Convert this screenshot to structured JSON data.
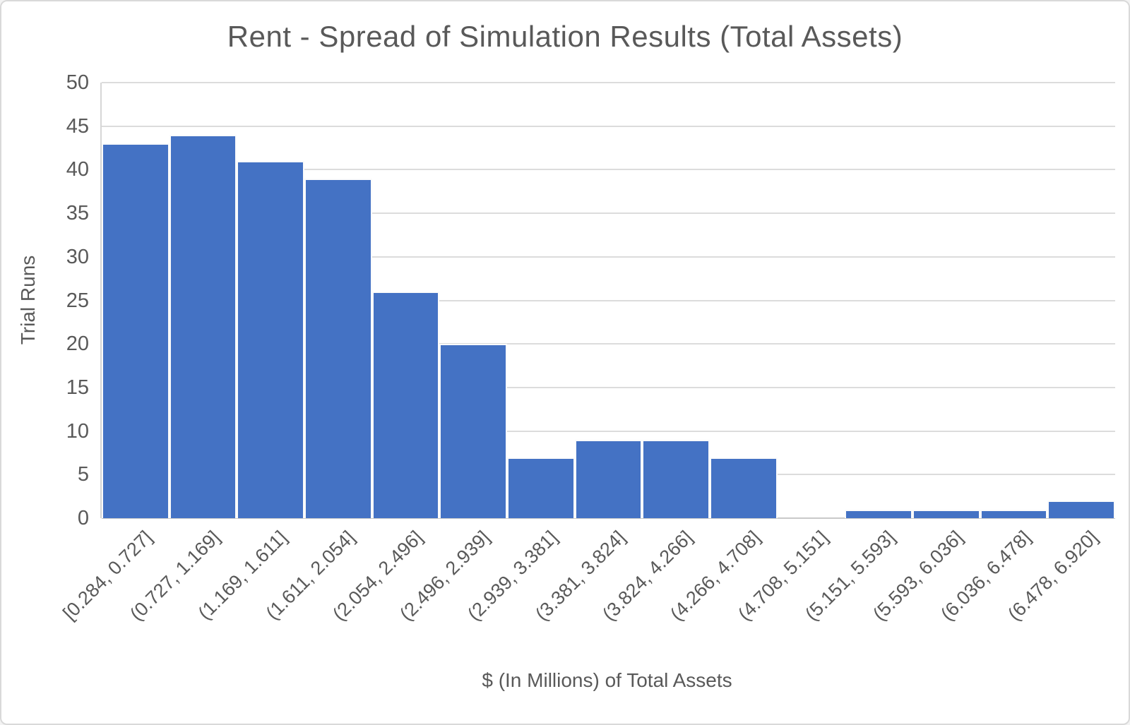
{
  "chart": {
    "title": "Rent - Spread of Simulation Results (Total Assets)",
    "y_axis_title": "Trial Runs",
    "x_axis_title": "$ (In Millions) of Total Assets",
    "colors": {
      "bar_fill": "#4472C4",
      "bar_border": "#FBFBFB",
      "text": "#595959",
      "gridline": "#DCDCDC",
      "axis_line": "#C9C9C9",
      "background": "#FFFFFF",
      "frame_border": "#D9D9D9"
    }
  },
  "chart_data": {
    "type": "bar",
    "subtype": "histogram",
    "title": "Rent - Spread of Simulation Results (Total Assets)",
    "categories": [
      "[0.284, 0.727]",
      "(0.727, 1.169]",
      "(1.169, 1.611]",
      "(1.611, 2.054]",
      "(2.054, 2.496]",
      "(2.496, 2.939]",
      "(2.939, 3.381]",
      "(3.381, 3.824]",
      "(3.824, 4.266]",
      "(4.266, 4.708]",
      "(4.708, 5.151]",
      "(5.151, 5.593]",
      "(5.593, 6.036]",
      "(6.036, 6.478]",
      "(6.478, 6.920]"
    ],
    "values": [
      43,
      44,
      41,
      39,
      26,
      20,
      7,
      9,
      9,
      7,
      0,
      1,
      1,
      1,
      2
    ],
    "total_trials": 250,
    "xlabel": "$ (In Millions) of Total Assets",
    "ylabel": "Trial Runs",
    "ylim": [
      0,
      50
    ],
    "ytick_step": 5,
    "yticks": [
      0,
      5,
      10,
      15,
      20,
      25,
      30,
      35,
      40,
      45,
      50
    ],
    "x_tick_rotation_deg": -45,
    "grid": true,
    "legend": false,
    "bar_gap": 0
  }
}
